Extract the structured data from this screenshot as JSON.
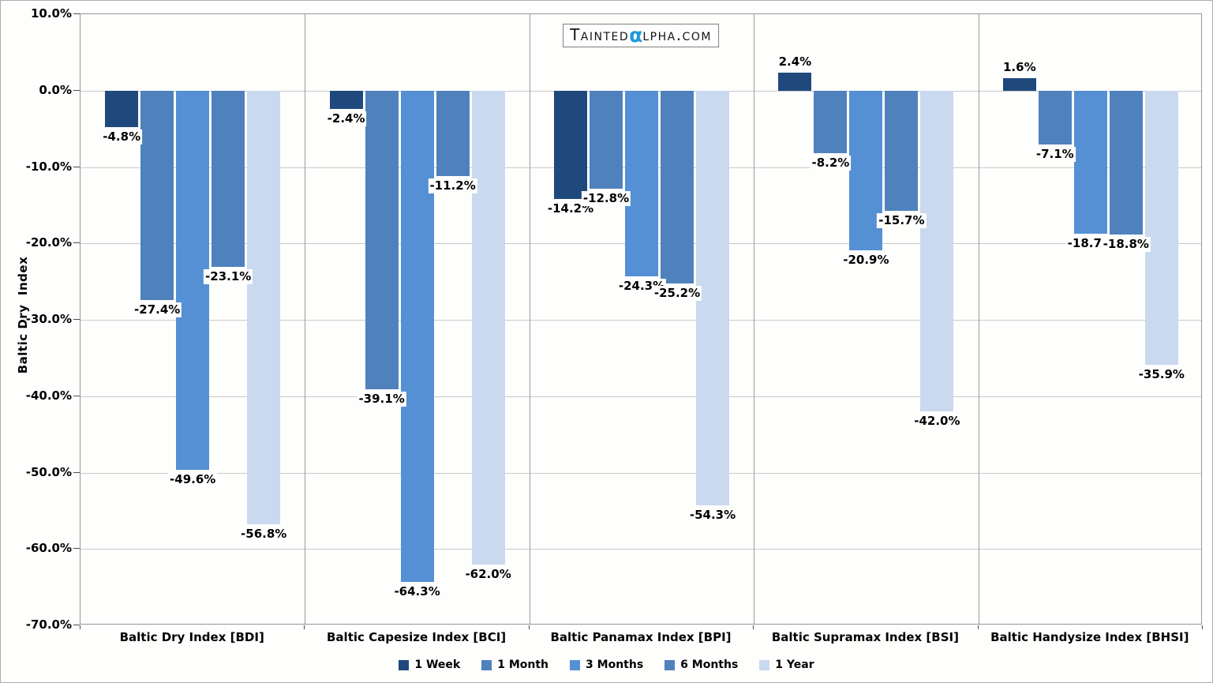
{
  "logo": {
    "prefix": "Tainted",
    "alpha": "α",
    "suffix": "lpha.com",
    "alpha_color": "#1E9AD6"
  },
  "y_axis": {
    "title": "Baltic Dry  Index",
    "tick_labels": [
      "10.0%",
      "0.0%",
      "-10.0%",
      "-20.0%",
      "-30.0%",
      "-40.0%",
      "-50.0%",
      "-60.0%",
      "-70.0%"
    ]
  },
  "chart_data": {
    "type": "bar",
    "title": "Taintedαlpha.com",
    "ylabel": "Baltic Dry  Index",
    "xlabel": "",
    "ylim": [
      -70,
      10
    ],
    "ytick_step": 10,
    "grid": "horizontal",
    "legend_position": "bottom",
    "categories": [
      "Baltic Dry Index [BDI]",
      "Baltic Capesize Index [BCI]",
      "Baltic Panamax Index [BPI]",
      "Baltic Supramax Index [BSI]",
      "Baltic Handysize Index [BHSI]"
    ],
    "series": [
      {
        "name": "1 Week",
        "color": "#1F497D",
        "pattern": "dots-dark",
        "values": [
          -4.8,
          -2.4,
          -14.2,
          2.4,
          1.6
        ],
        "labels": [
          "-4.8%",
          "-2.4%",
          "-14.2%",
          "2.4%",
          "1.6%"
        ]
      },
      {
        "name": "1 Month",
        "color": "#4F81BD",
        "pattern": "solid",
        "values": [
          -27.4,
          -39.1,
          -12.8,
          -8.2,
          -7.1
        ],
        "labels": [
          "-27.4%",
          "-39.1%",
          "-12.8%",
          "-8.2%",
          "-7.1%"
        ]
      },
      {
        "name": "3 Months",
        "color": "#5590D5",
        "pattern": "solid",
        "values": [
          -49.6,
          -64.3,
          -24.3,
          -20.9,
          -18.7
        ],
        "labels": [
          "-49.6%",
          "-64.3%",
          "-24.3%",
          "-20.9%",
          "-18.7%"
        ]
      },
      {
        "name": "6 Months",
        "color": "#4F81BD",
        "pattern": "solid",
        "values": [
          -23.1,
          -11.2,
          -25.2,
          -15.7,
          -18.8
        ],
        "labels": [
          "-23.1%",
          "-11.2%",
          "-25.2%",
          "-15.7%",
          "-18.8%"
        ]
      },
      {
        "name": "1 Year",
        "color": "#C9D9EF",
        "pattern": "dots-light",
        "values": [
          -56.8,
          -62.0,
          -54.3,
          -42.0,
          -35.9
        ],
        "labels": [
          "-56.8%",
          "-62.0%",
          "-54.3%",
          "-42.0%",
          "-35.9%"
        ]
      }
    ]
  }
}
